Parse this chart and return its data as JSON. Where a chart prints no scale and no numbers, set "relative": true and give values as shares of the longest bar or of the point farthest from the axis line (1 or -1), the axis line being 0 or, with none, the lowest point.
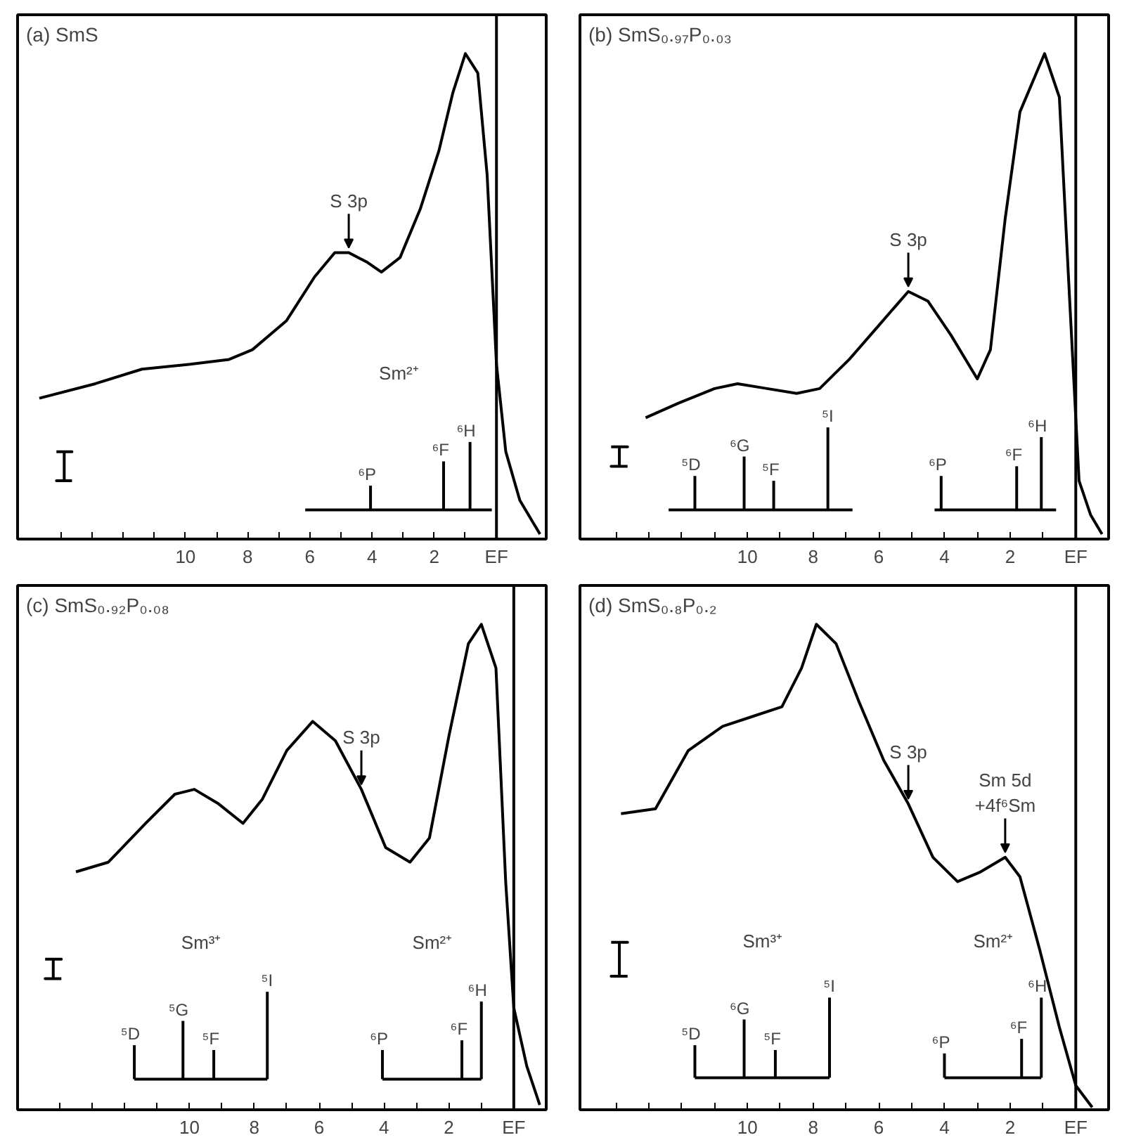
{
  "chart_data": [
    {
      "type": "line",
      "title": "(a) SmS",
      "relative": true,
      "xlim": [
        15.4,
        -1.6
      ],
      "xticks": [
        {
          "value": 14,
          "label": null
        },
        {
          "value": 13,
          "label": null
        },
        {
          "value": 12,
          "label": null
        },
        {
          "value": 11,
          "label": null
        },
        10,
        {
          "value": 9,
          "label": null
        },
        8,
        {
          "value": 7,
          "label": null
        },
        6,
        {
          "value": 5,
          "label": null
        },
        4,
        {
          "value": 3,
          "label": null
        },
        2,
        {
          "value": 1,
          "label": null
        },
        {
          "value": 0,
          "label": "EF"
        }
      ],
      "ref_lines": [
        {
          "axis": "x",
          "value": 0
        }
      ],
      "series": [
        {
          "color": "#000000",
          "x": [
            14.7,
            12.9,
            11.4,
            9.85,
            8.6,
            7.85,
            6.75,
            5.85,
            5.2,
            4.75,
            4.15,
            3.7,
            3.1,
            2.45,
            1.85,
            1.4,
            1.0,
            0.6,
            0.3,
            0.0,
            -0.3,
            -0.75,
            -1.4
          ],
          "values": [
            0.29,
            0.32,
            0.35,
            0.36,
            0.37,
            0.39,
            0.45,
            0.54,
            0.59,
            0.59,
            0.57,
            0.55,
            0.58,
            0.68,
            0.8,
            0.92,
            1.0,
            0.96,
            0.75,
            0.36,
            0.18,
            0.08,
            0.01
          ]
        },
        {
          "type": "line",
          "color": "#000000",
          "x": [
            6.15,
            0.15
          ],
          "values": [
            0.06,
            0.06
          ]
        },
        {
          "type": "line",
          "color": "#000000",
          "x": [
            4.05,
            4.05
          ],
          "values": [
            0.06,
            0.11
          ]
        },
        {
          "type": "line",
          "color": "#000000",
          "x": [
            1.7,
            1.7
          ],
          "values": [
            0.06,
            0.16
          ]
        },
        {
          "type": "line",
          "color": "#000000",
          "x": [
            0.85,
            0.85
          ],
          "values": [
            0.06,
            0.2
          ]
        },
        {
          "type": "line",
          "color": "#000000",
          "x": [
            14.15,
            13.65,
            13.9,
            13.9,
            14.15,
            13.65
          ],
          "values": [
            0.18,
            0.18,
            0.18,
            0.12,
            0.12,
            0.12
          ]
        }
      ],
      "annotations": [
        {
          "text": "S 3p",
          "x": 4.75,
          "y": 0.59
        },
        "Sm²⁺",
        {
          "text": "⁶P",
          "x": 4.05,
          "y": 0.11
        },
        {
          "text": "⁶F",
          "x": 1.7,
          "y": 0.16
        },
        {
          "text": "⁶H",
          "x": 0.85,
          "y": 0.2
        }
      ]
    },
    {
      "type": "line",
      "title": "(b) SmS₀.₉₇P₀.₀₃",
      "relative": true,
      "xlim": [
        15.1,
        -1.0
      ],
      "xticks": [
        {
          "value": 14,
          "label": null
        },
        {
          "value": 13,
          "label": null
        },
        {
          "value": 12,
          "label": null
        },
        {
          "value": 11,
          "label": null
        },
        10,
        {
          "value": 9,
          "label": null
        },
        8,
        {
          "value": 7,
          "label": null
        },
        6,
        {
          "value": 5,
          "label": null
        },
        4,
        {
          "value": 3,
          "label": null
        },
        2,
        {
          "value": 1,
          "label": null
        },
        {
          "value": 0,
          "label": "EF"
        }
      ],
      "ref_lines": [
        {
          "axis": "x",
          "value": 0
        }
      ],
      "series": [
        {
          "color": "#000000",
          "x": [
            13.1,
            12.1,
            11.0,
            10.3,
            9.4,
            8.5,
            7.8,
            6.9,
            6.0,
            5.1,
            4.5,
            3.8,
            3.0,
            2.6,
            2.15,
            1.7,
            0.95,
            0.5,
            0.2,
            -0.1,
            -0.45,
            -0.8
          ],
          "values": [
            0.25,
            0.28,
            0.31,
            0.32,
            0.31,
            0.3,
            0.31,
            0.37,
            0.44,
            0.51,
            0.49,
            0.42,
            0.33,
            0.39,
            0.66,
            0.88,
            1.0,
            0.91,
            0.51,
            0.12,
            0.05,
            0.01
          ]
        },
        {
          "type": "line",
          "color": "#000000",
          "x": [
            12.4,
            6.8
          ],
          "values": [
            0.06,
            0.06
          ]
        },
        {
          "type": "line",
          "color": "#000000",
          "x": [
            4.3,
            0.6
          ],
          "values": [
            0.06,
            0.06
          ]
        },
        {
          "type": "line",
          "color": "#000000",
          "x": [
            11.6,
            11.6
          ],
          "values": [
            0.06,
            0.13
          ]
        },
        {
          "type": "line",
          "color": "#000000",
          "x": [
            10.1,
            10.1
          ],
          "values": [
            0.06,
            0.17
          ]
        },
        {
          "type": "line",
          "color": "#000000",
          "x": [
            9.2,
            9.2
          ],
          "values": [
            0.06,
            0.12
          ]
        },
        {
          "type": "line",
          "color": "#000000",
          "x": [
            7.55,
            7.55
          ],
          "values": [
            0.06,
            0.23
          ]
        },
        {
          "type": "line",
          "color": "#000000",
          "x": [
            4.1,
            4.1
          ],
          "values": [
            0.06,
            0.13
          ]
        },
        {
          "type": "line",
          "color": "#000000",
          "x": [
            1.8,
            1.8
          ],
          "values": [
            0.06,
            0.15
          ]
        },
        {
          "type": "line",
          "color": "#000000",
          "x": [
            1.05,
            1.05
          ],
          "values": [
            0.06,
            0.21
          ]
        },
        {
          "type": "line",
          "color": "#000000",
          "x": [
            14.15,
            13.65,
            13.9,
            13.9,
            14.15,
            13.65
          ],
          "values": [
            0.19,
            0.19,
            0.19,
            0.15,
            0.15,
            0.15
          ]
        }
      ],
      "annotations": [
        {
          "text": "S 3p",
          "x": 5.1,
          "y": 0.51
        },
        {
          "text": "⁵D",
          "x": 11.6,
          "y": 0.13
        },
        {
          "text": "⁶G",
          "x": 10.1,
          "y": 0.17
        },
        {
          "text": "⁵F",
          "x": 9.2,
          "y": 0.12
        },
        {
          "text": "⁵I",
          "x": 7.55,
          "y": 0.23
        },
        {
          "text": "⁶P",
          "x": 4.1,
          "y": 0.13
        },
        {
          "text": "⁶F",
          "x": 1.8,
          "y": 0.15
        },
        {
          "text": "⁶H",
          "x": 1.05,
          "y": 0.21
        }
      ]
    },
    {
      "type": "line",
      "title": "(c) SmS₀.₉₂P₀.₀₈",
      "relative": true,
      "xlim": [
        15.3,
        -1.0
      ],
      "xticks": [
        {
          "value": 14,
          "label": null
        },
        {
          "value": 13,
          "label": null
        },
        {
          "value": 12,
          "label": null
        },
        {
          "value": 11,
          "label": null
        },
        10,
        {
          "value": 9,
          "label": null
        },
        8,
        {
          "value": 7,
          "label": null
        },
        6,
        {
          "value": 5,
          "label": null
        },
        4,
        {
          "value": 3,
          "label": null
        },
        2,
        {
          "value": 1,
          "label": null
        },
        {
          "value": 0,
          "label": "EF"
        }
      ],
      "ref_lines": [
        {
          "axis": "x",
          "value": 0
        }
      ],
      "series": [
        {
          "color": "#000000",
          "x": [
            13.5,
            12.5,
            11.35,
            10.45,
            9.85,
            9.1,
            8.35,
            7.75,
            7.0,
            6.2,
            5.5,
            4.7,
            3.95,
            3.2,
            2.6,
            2.0,
            1.4,
            1.0,
            0.55,
            0.25,
            0.0,
            -0.4,
            -0.8
          ],
          "values": [
            0.49,
            0.51,
            0.59,
            0.65,
            0.66,
            0.63,
            0.59,
            0.64,
            0.74,
            0.8,
            0.76,
            0.66,
            0.54,
            0.51,
            0.56,
            0.77,
            0.96,
            1.0,
            0.91,
            0.47,
            0.21,
            0.09,
            0.01
          ]
        },
        {
          "type": "line",
          "color": "#000000",
          "x": [
            11.7,
            7.6
          ],
          "values": [
            0.063,
            0.063
          ]
        },
        {
          "type": "line",
          "color": "#000000",
          "x": [
            4.05,
            1.0
          ],
          "values": [
            0.063,
            0.063
          ]
        },
        {
          "type": "line",
          "color": "#000000",
          "x": [
            11.7,
            11.7
          ],
          "values": [
            0.063,
            0.133
          ]
        },
        {
          "type": "line",
          "color": "#000000",
          "x": [
            10.2,
            10.2
          ],
          "values": [
            0.063,
            0.183
          ]
        },
        {
          "type": "line",
          "color": "#000000",
          "x": [
            9.25,
            9.25
          ],
          "values": [
            0.063,
            0.123
          ]
        },
        {
          "type": "line",
          "color": "#000000",
          "x": [
            7.6,
            7.6
          ],
          "values": [
            0.063,
            0.243
          ]
        },
        {
          "type": "line",
          "color": "#000000",
          "x": [
            4.05,
            4.05
          ],
          "values": [
            0.063,
            0.123
          ]
        },
        {
          "type": "line",
          "color": "#000000",
          "x": [
            1.6,
            1.6
          ],
          "values": [
            0.063,
            0.143
          ]
        },
        {
          "type": "line",
          "color": "#000000",
          "x": [
            1.0,
            1.0
          ],
          "values": [
            0.063,
            0.223
          ]
        },
        {
          "type": "line",
          "color": "#000000",
          "x": [
            14.45,
            13.95,
            14.2,
            14.2,
            14.45,
            13.95
          ],
          "values": [
            0.31,
            0.31,
            0.31,
            0.27,
            0.27,
            0.27
          ]
        }
      ],
      "annotations": [
        {
          "text": "S 3p",
          "x": 4.7,
          "y": 0.66
        },
        "Sm³⁺",
        "Sm²⁺",
        {
          "text": "⁵D",
          "x": 11.7,
          "y": 0.133
        },
        {
          "text": "⁵G",
          "x": 10.2,
          "y": 0.183
        },
        {
          "text": "⁵F",
          "x": 9.25,
          "y": 0.123
        },
        {
          "text": "⁵I",
          "x": 7.6,
          "y": 0.243
        },
        {
          "text": "⁶P",
          "x": 4.05,
          "y": 0.123
        },
        {
          "text": "⁶F",
          "x": 1.6,
          "y": 0.143
        },
        {
          "text": "⁶H",
          "x": 1.0,
          "y": 0.223
        }
      ]
    },
    {
      "type": "line",
      "title": "(d) SmS₀.₈P₀.₂",
      "relative": true,
      "xlim": [
        15.1,
        -1.0
      ],
      "xticks": [
        {
          "value": 14,
          "label": null
        },
        {
          "value": 13,
          "label": null
        },
        {
          "value": 12,
          "label": null
        },
        {
          "value": 11,
          "label": null
        },
        10,
        {
          "value": 9,
          "label": null
        },
        8,
        {
          "value": 7,
          "label": null
        },
        6,
        {
          "value": 5,
          "label": null
        },
        4,
        {
          "value": 3,
          "label": null
        },
        2,
        {
          "value": 1,
          "label": null
        },
        {
          "value": 0,
          "label": "EF"
        }
      ],
      "ref_lines": [
        {
          "axis": "x",
          "value": 0
        }
      ],
      "series": [
        {
          "color": "#000000",
          "x": [
            13.85,
            12.8,
            11.8,
            10.75,
            9.85,
            8.95,
            8.35,
            7.9,
            7.3,
            6.6,
            5.85,
            5.1,
            4.35,
            3.6,
            2.9,
            2.15,
            1.7,
            1.1,
            0.5,
            0.0,
            -0.5
          ],
          "values": [
            0.61,
            0.62,
            0.74,
            0.79,
            0.81,
            0.83,
            0.91,
            1.0,
            0.96,
            0.84,
            0.72,
            0.63,
            0.52,
            0.47,
            0.49,
            0.52,
            0.48,
            0.33,
            0.17,
            0.05,
            0.005
          ]
        },
        {
          "type": "line",
          "color": "#000000",
          "x": [
            11.6,
            7.5
          ],
          "values": [
            0.066,
            0.066
          ]
        },
        {
          "type": "line",
          "color": "#000000",
          "x": [
            4.0,
            1.05
          ],
          "values": [
            0.066,
            0.066
          ]
        },
        {
          "type": "line",
          "color": "#000000",
          "x": [
            11.6,
            11.6
          ],
          "values": [
            0.066,
            0.133
          ]
        },
        {
          "type": "line",
          "color": "#000000",
          "x": [
            10.1,
            10.1
          ],
          "values": [
            0.066,
            0.186
          ]
        },
        {
          "type": "line",
          "color": "#000000",
          "x": [
            9.15,
            9.15
          ],
          "values": [
            0.066,
            0.123
          ]
        },
        {
          "type": "line",
          "color": "#000000",
          "x": [
            7.5,
            7.5
          ],
          "values": [
            0.066,
            0.231
          ]
        },
        {
          "type": "line",
          "color": "#000000",
          "x": [
            4.0,
            4.0
          ],
          "values": [
            0.066,
            0.116
          ]
        },
        {
          "type": "line",
          "color": "#000000",
          "x": [
            1.65,
            1.65
          ],
          "values": [
            0.066,
            0.146
          ]
        },
        {
          "type": "line",
          "color": "#000000",
          "x": [
            1.05,
            1.05
          ],
          "values": [
            0.066,
            0.231
          ]
        },
        {
          "type": "line",
          "color": "#000000",
          "x": [
            14.15,
            13.65,
            13.9,
            13.9,
            14.15,
            13.65
          ],
          "values": [
            0.345,
            0.345,
            0.345,
            0.275,
            0.275,
            0.275
          ]
        }
      ],
      "annotations": [
        {
          "text": "S 3p",
          "x": 5.1,
          "y": 0.63
        },
        {
          "text": "Sm 5d\n+4f⁶Sm",
          "x": 2.15,
          "y": 0.52
        },
        "Sm³⁺",
        "Sm²⁺",
        {
          "text": "⁵D",
          "x": 11.6,
          "y": 0.133
        },
        {
          "text": "⁶G",
          "x": 10.1,
          "y": 0.186
        },
        {
          "text": "⁵F",
          "x": 9.15,
          "y": 0.123
        },
        {
          "text": "⁵I",
          "x": 7.5,
          "y": 0.231
        },
        {
          "text": "⁶P",
          "x": 4.0,
          "y": 0.116
        },
        {
          "text": "⁶F",
          "x": 1.65,
          "y": 0.146
        },
        {
          "text": "⁶H",
          "x": 1.05,
          "y": 0.231
        }
      ]
    }
  ]
}
